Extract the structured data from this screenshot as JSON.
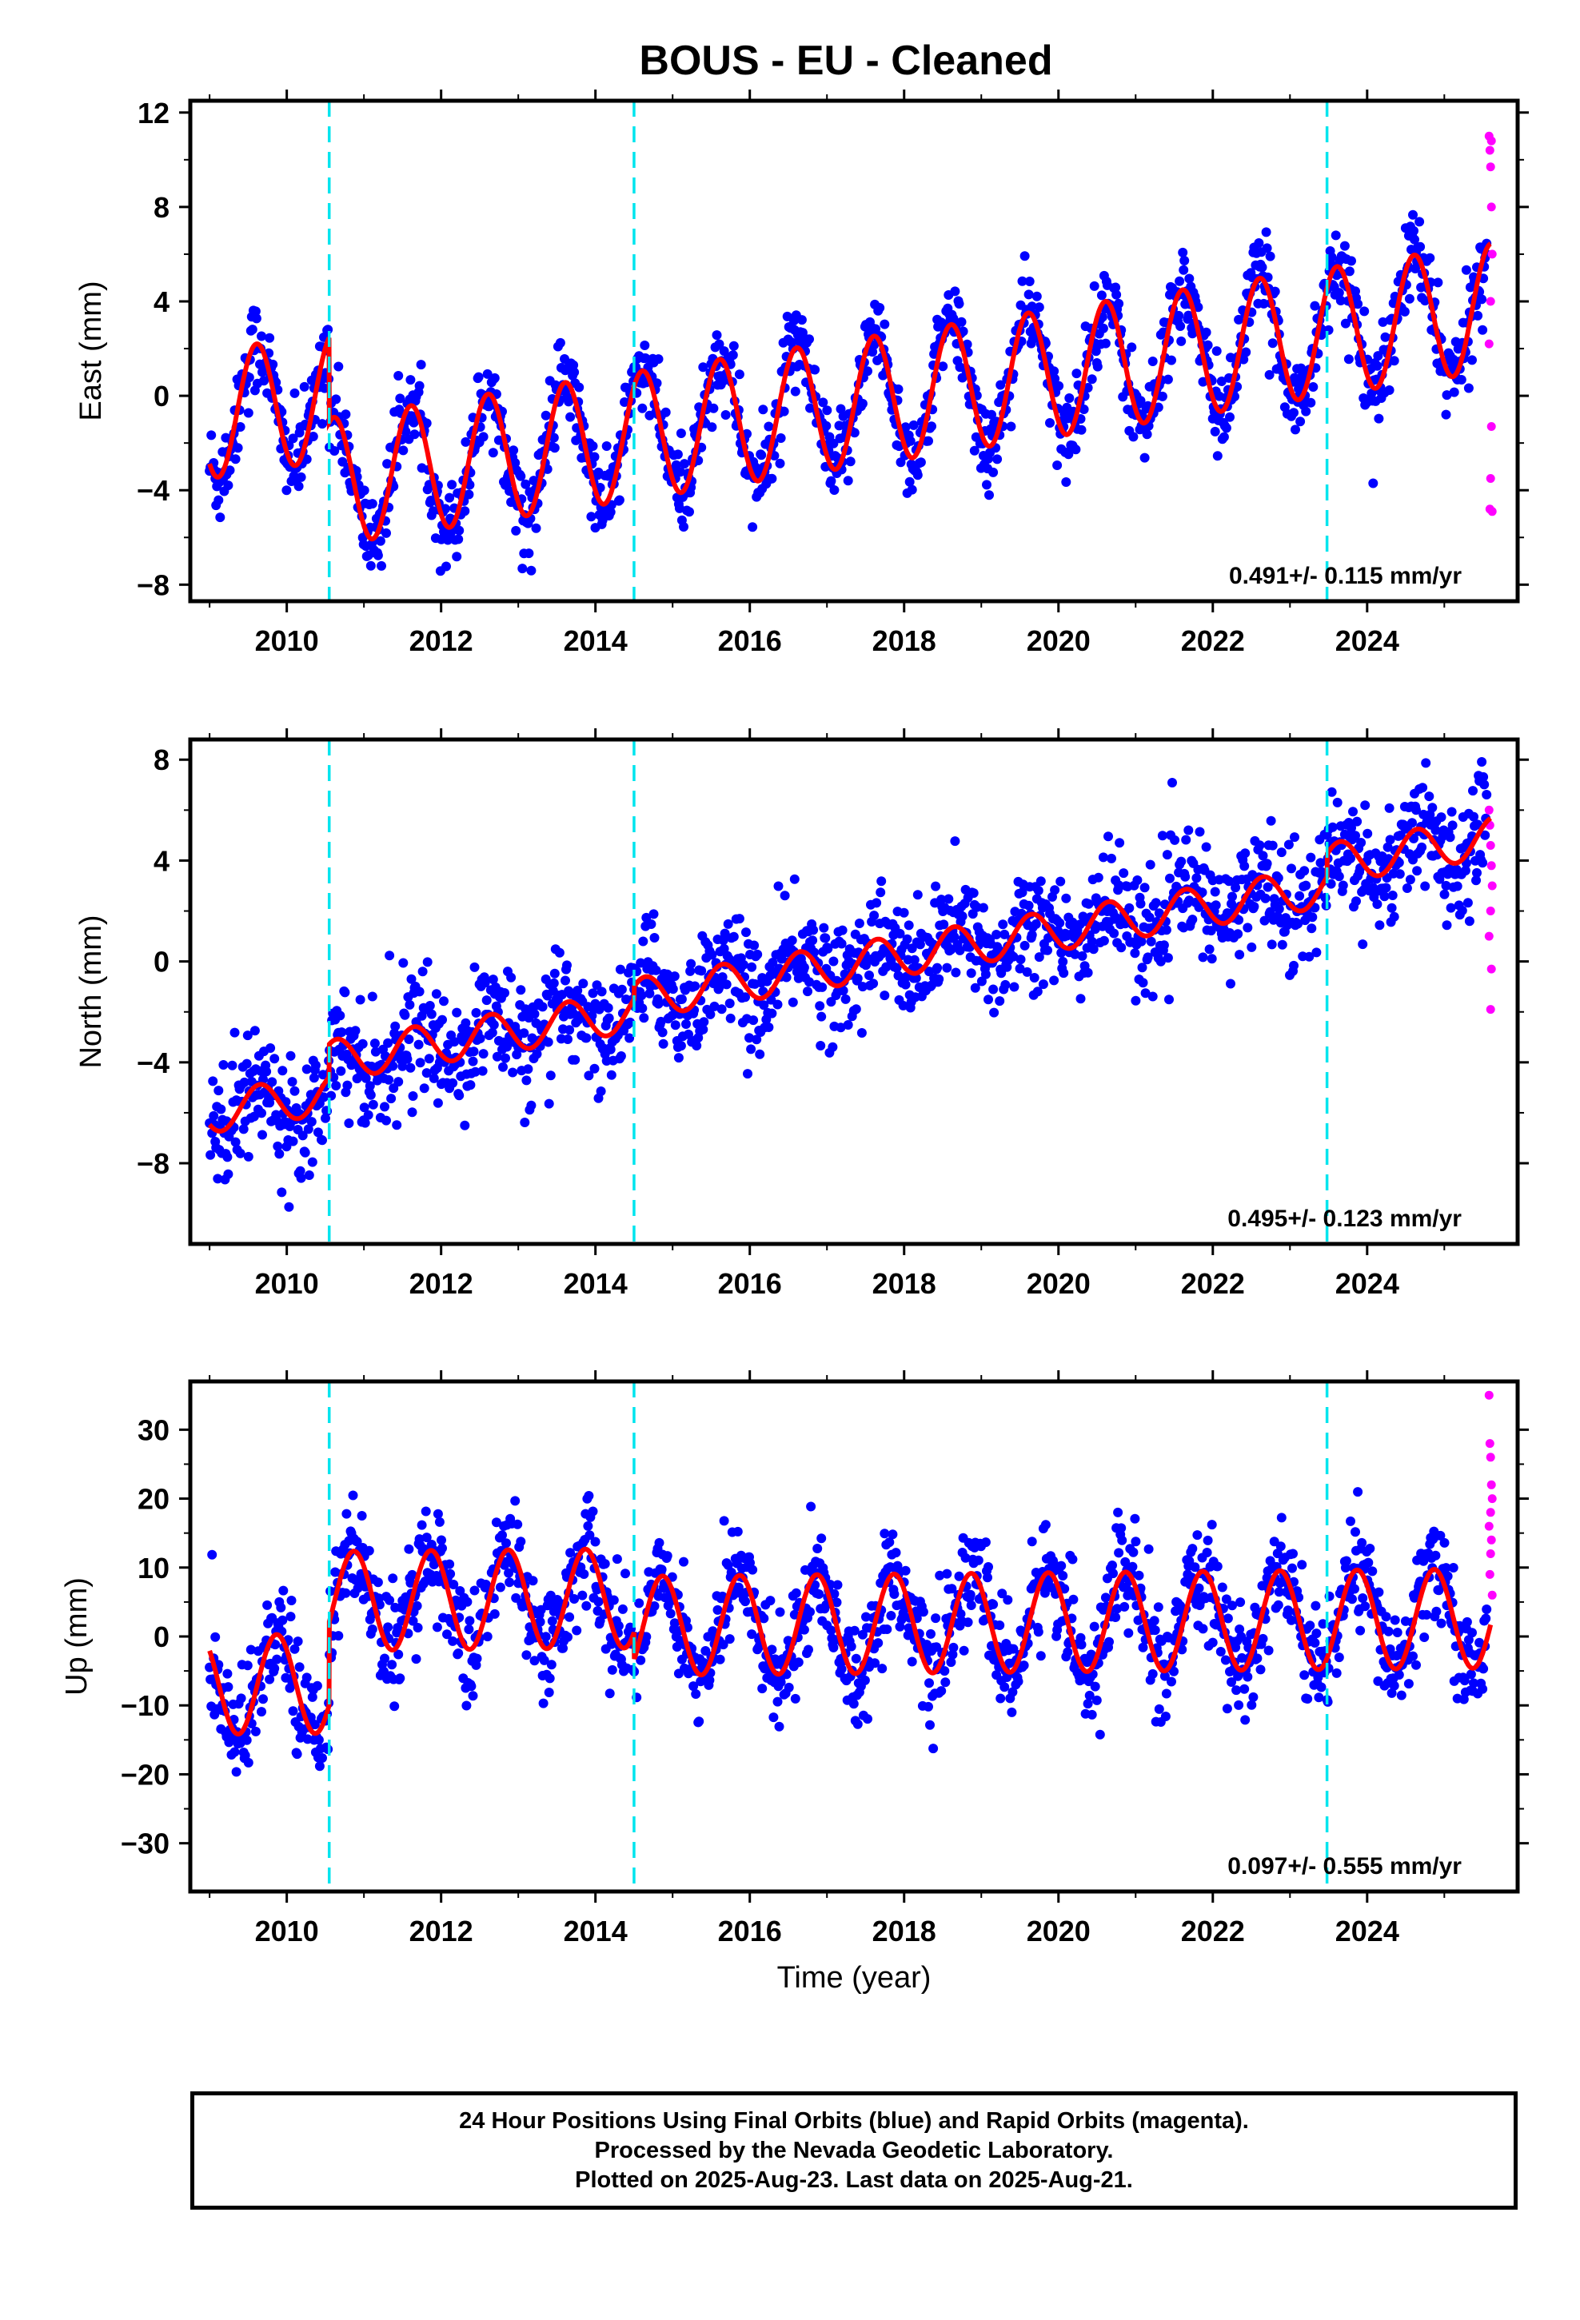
{
  "title": "BOUS  - EU - Cleaned",
  "caption": {
    "line1": "24 Hour Positions Using Final Orbits (blue) and Rapid Orbits (magenta).",
    "line2": "Processed by the Nevada Geodetic Laboratory.",
    "line3": "Plotted on 2025-Aug-23. Last data on 2025-Aug-21."
  },
  "colors": {
    "final_orbits": "#0000ff",
    "rapid_orbits": "#ff00ff",
    "model_fit": "#ff0000",
    "equipment_change": "#00e5ee",
    "axis": "#000000"
  },
  "chart_data": [
    {
      "type": "scatter",
      "ylabel": "East (mm)",
      "xlim": [
        2008.75,
        2025.95
      ],
      "ylim": [
        -8.7,
        12.5
      ],
      "x_ticks": [
        2010,
        2012,
        2014,
        2016,
        2018,
        2020,
        2022,
        2024
      ],
      "y_ticks": [
        -8,
        -4,
        0,
        4,
        8,
        12
      ],
      "grid": false,
      "rate_text": "0.491+/- 0.115 mm/yr",
      "breaks": [
        2010.55,
        2014.5,
        2023.48
      ],
      "model": {
        "start": 2009.0,
        "end": 2025.6,
        "base": -0.8,
        "trend": 0.491,
        "seasonal_amplitude": 2.7,
        "seasonal_phase_year": 0.36,
        "offsets": [
          {
            "at": 2010.55,
            "shift": -3.6
          },
          {
            "at": 2014.5,
            "shift": 0.0
          },
          {
            "at": 2023.48,
            "shift": 0.0
          }
        ]
      },
      "series": [
        {
          "name": "Final Orbits",
          "color": "#0000ff",
          "range": [
            2009.0,
            2025.55
          ],
          "noise": 0.9
        },
        {
          "name": "Rapid Orbits",
          "color": "#ff00ff",
          "x": [
            2025.58,
            2025.59,
            2025.6,
            2025.61,
            2025.62,
            2025.6,
            2025.58,
            2025.61,
            2025.6,
            2025.59,
            2025.62,
            2025.61
          ],
          "y": [
            11.0,
            10.4,
            9.7,
            8.0,
            6.0,
            4.0,
            2.2,
            -1.3,
            -3.5,
            -4.8,
            -4.9,
            10.8
          ]
        }
      ]
    },
    {
      "type": "scatter",
      "ylabel": "North (mm)",
      "xlim": [
        2008.75,
        2025.95
      ],
      "ylim": [
        -11.2,
        8.8
      ],
      "x_ticks": [
        2010,
        2012,
        2014,
        2016,
        2018,
        2020,
        2022,
        2024
      ],
      "y_ticks": [
        -8,
        -4,
        0,
        4,
        8
      ],
      "grid": false,
      "rate_text": "0.495+/- 0.123 mm/yr",
      "breaks": [
        2010.55,
        2014.5,
        2023.48
      ],
      "model": {
        "start": 2009.0,
        "end": 2025.6,
        "base": -6.0,
        "trend": 0.495,
        "seasonal_amplitude": 0.8,
        "seasonal_phase_year": 0.4,
        "offsets": [
          {
            "at": 2010.55,
            "shift": 1.3
          },
          {
            "at": 2014.5,
            "shift": 0.5
          },
          {
            "at": 2023.48,
            "shift": 0.9
          }
        ]
      },
      "series": [
        {
          "name": "Final Orbits",
          "color": "#0000ff",
          "range": [
            2009.0,
            2025.55
          ],
          "noise": 1.1
        },
        {
          "name": "Rapid Orbits",
          "color": "#ff00ff",
          "x": [
            2025.58,
            2025.59,
            2025.6,
            2025.61,
            2025.62,
            2025.6,
            2025.58,
            2025.61,
            2025.6
          ],
          "y": [
            6.0,
            5.4,
            4.6,
            3.8,
            3.0,
            2.0,
            1.0,
            -0.3,
            -1.9
          ]
        }
      ]
    },
    {
      "type": "scatter",
      "ylabel": "Up (mm)",
      "xlim": [
        2008.75,
        2025.95
      ],
      "ylim": [
        -37,
        37
      ],
      "x_ticks": [
        2010,
        2012,
        2014,
        2016,
        2018,
        2020,
        2022,
        2024
      ],
      "y_ticks": [
        -30,
        -20,
        -10,
        0,
        10,
        20,
        30
      ],
      "xlabel": "Time (year)",
      "grid": false,
      "rate_text": "0.097+/- 0.555 mm/yr",
      "breaks": [
        2010.55,
        2014.5,
        2023.48
      ],
      "model": {
        "start": 2009.0,
        "end": 2025.6,
        "base": -7.0,
        "trend": 0.097,
        "seasonal_amplitude": 7.2,
        "seasonal_phase_year": 0.62,
        "offsets": [
          {
            "at": 2010.55,
            "shift": 12.0
          },
          {
            "at": 2014.5,
            "shift": -4.0
          },
          {
            "at": 2023.48,
            "shift": 0.0
          }
        ]
      },
      "series": [
        {
          "name": "Final Orbits",
          "color": "#0000ff",
          "range": [
            2009.0,
            2025.55
          ],
          "noise": 3.8
        },
        {
          "name": "Rapid Orbits",
          "color": "#ff00ff",
          "x": [
            2025.58,
            2025.59,
            2025.6,
            2025.61,
            2025.62,
            2025.6,
            2025.58,
            2025.61,
            2025.6,
            2025.59,
            2025.62
          ],
          "y": [
            35.0,
            28.0,
            26.0,
            22.0,
            20.0,
            18.0,
            16.0,
            14.0,
            12.0,
            9.0,
            6.0
          ]
        }
      ]
    }
  ]
}
